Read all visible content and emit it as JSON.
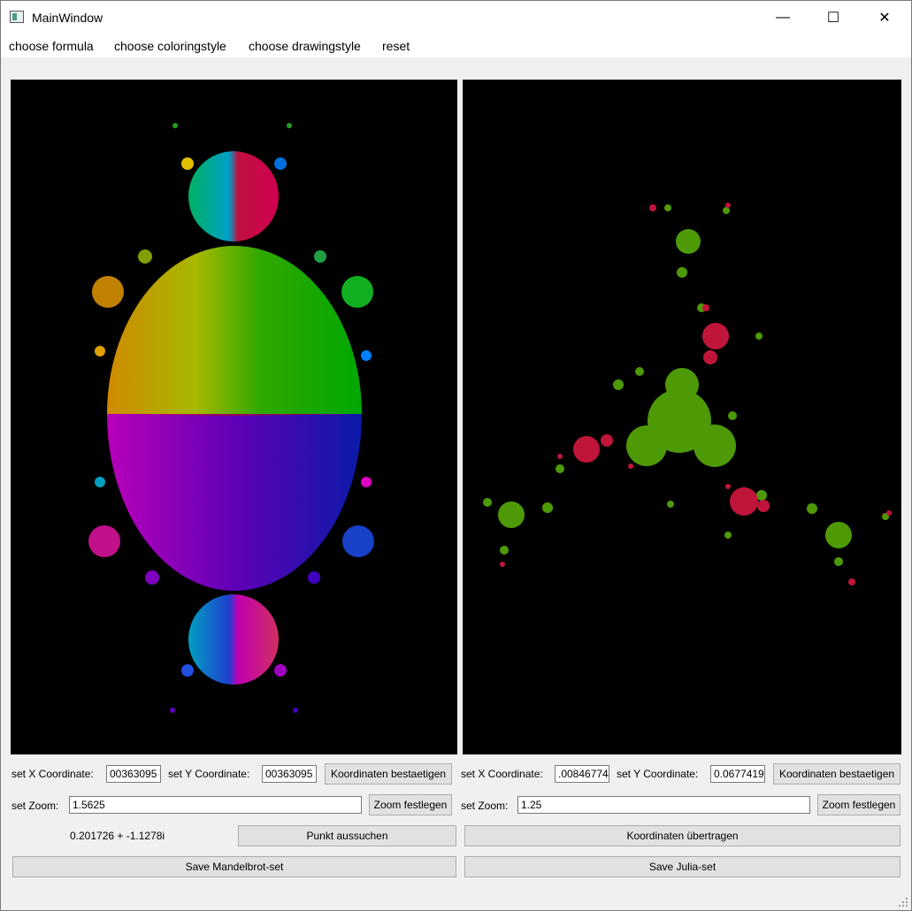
{
  "window": {
    "title": "MainWindow",
    "minimize": "—",
    "maximize": "☐",
    "close": "✕"
  },
  "menu": [
    "choose formula",
    "choose coloringstyle",
    "choose drawingstyle",
    "reset"
  ],
  "left": {
    "x_label": "set X Coordinate:",
    "x_value": "00363095",
    "y_label": "set Y Coordinate:",
    "y_value": "00363095",
    "confirm_button": "Koordinaten bestaetigen",
    "zoom_label": "set Zoom:",
    "zoom_value": "1.5625",
    "zoom_button": "Zoom festlegen",
    "point_readout": "0.201726 + -1.1278i",
    "search_button": "Punkt aussuchen",
    "save_button": "Save Mandelbrot-set"
  },
  "right": {
    "x_label": "set X Coordinate:",
    "x_value": ".00846774",
    "y_label": "set Y Coordinate:",
    "y_value": "0.0677419",
    "confirm_button": "Koordinaten bestaetigen",
    "zoom_label": "set Zoom:",
    "zoom_value": "1.25",
    "zoom_button": "Zoom festlegen",
    "transfer_button": "Koordinaten übertragen",
    "save_button": "Save Julia-set"
  },
  "colors": {
    "julia_green": "#4e9a06",
    "julia_red": "#c0153a",
    "canvas_bg": "#000000"
  }
}
